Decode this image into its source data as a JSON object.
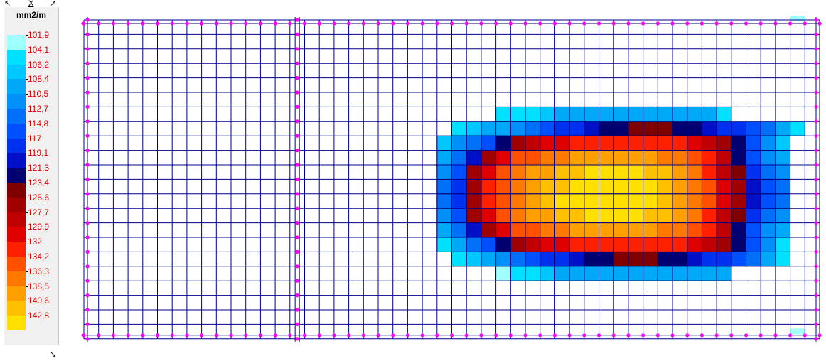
{
  "legend": {
    "unit": "mm2/m",
    "close_label": "X",
    "corner_glyphs": {
      "top_left": "↖",
      "top_right": "↗",
      "bottom_right": "↘"
    },
    "entries": [
      {
        "label": "101,9",
        "color": "#a0ffff"
      },
      {
        "label": "104,1",
        "color": "#00e0ff"
      },
      {
        "label": "106,2",
        "color": "#00c8ff"
      },
      {
        "label": "108,4",
        "color": "#00a8f8"
      },
      {
        "label": "110,5",
        "color": "#0090f8"
      },
      {
        "label": "112,7",
        "color": "#0070f8"
      },
      {
        "label": "114,8",
        "color": "#0050ff"
      },
      {
        "label": "117",
        "color": "#0030f0"
      },
      {
        "label": "119,1",
        "color": "#0010c8"
      },
      {
        "label": "121,3",
        "color": "#000070"
      },
      {
        "label": "123,4",
        "color": "#800000"
      },
      {
        "label": "125,6",
        "color": "#a00000"
      },
      {
        "label": "127,7",
        "color": "#c00000"
      },
      {
        "label": "129,9",
        "color": "#e00000"
      },
      {
        "label": "132",
        "color": "#ff2000"
      },
      {
        "label": "134,2",
        "color": "#ff5000"
      },
      {
        "label": "136,3",
        "color": "#ff7800"
      },
      {
        "label": "138,5",
        "color": "#ffa000"
      },
      {
        "label": "140,6",
        "color": "#ffc000"
      },
      {
        "label": "142,8",
        "color": "#ffe000"
      }
    ]
  },
  "mesh": {
    "cols": 50,
    "rows": 22,
    "support_lines_at_cols": [
      14.5
    ],
    "line_color": "#00008c",
    "node_color": "#ff00ff",
    "contour_rows": [
      {
        "row": 6,
        "start": 28,
        "cells": [
          1,
          1,
          1,
          2,
          3,
          3,
          3,
          3,
          3,
          3,
          3,
          3,
          3,
          3,
          3,
          1
        ]
      },
      {
        "row": 7,
        "start": 25,
        "cells": [
          1,
          2,
          3,
          3,
          4,
          5,
          6,
          7,
          7,
          8,
          9,
          9,
          10,
          10,
          10,
          9,
          9,
          8,
          7,
          7,
          6,
          5,
          3,
          1
        ]
      },
      {
        "row": 8,
        "start": 24,
        "cells": [
          2,
          4,
          5,
          6,
          9,
          11,
          12,
          13,
          13,
          14,
          14,
          14,
          14,
          14,
          14,
          14,
          14,
          13,
          12,
          11,
          9,
          6,
          4,
          2
        ]
      },
      {
        "row": 9,
        "start": 24,
        "cells": [
          3,
          5,
          8,
          11,
          13,
          15,
          15,
          16,
          16,
          17,
          17,
          17,
          17,
          17,
          17,
          16,
          16,
          15,
          14,
          12,
          9,
          6,
          4,
          3
        ]
      },
      {
        "row": 10,
        "start": 24,
        "cells": [
          4,
          6,
          11,
          13,
          15,
          16,
          17,
          17,
          18,
          18,
          19,
          19,
          19,
          19,
          18,
          18,
          17,
          16,
          14,
          12,
          10,
          7,
          5,
          4
        ]
      },
      {
        "row": 11,
        "start": 24,
        "cells": [
          5,
          7,
          11,
          14,
          15,
          16,
          17,
          18,
          18,
          19,
          19,
          19,
          19,
          19,
          19,
          18,
          17,
          16,
          15,
          13,
          11,
          8,
          6,
          5
        ]
      },
      {
        "row": 12,
        "start": 24,
        "cells": [
          5,
          7,
          11,
          14,
          15,
          16,
          17,
          18,
          19,
          19,
          19,
          19,
          19,
          19,
          19,
          18,
          17,
          16,
          15,
          13,
          11,
          8,
          6,
          5
        ]
      },
      {
        "row": 13,
        "start": 24,
        "cells": [
          4,
          6,
          11,
          13,
          15,
          16,
          17,
          17,
          18,
          18,
          19,
          19,
          19,
          19,
          18,
          18,
          17,
          16,
          14,
          12,
          10,
          7,
          5,
          4
        ]
      },
      {
        "row": 14,
        "start": 24,
        "cells": [
          3,
          5,
          8,
          11,
          13,
          15,
          15,
          16,
          16,
          17,
          17,
          17,
          17,
          17,
          17,
          16,
          16,
          15,
          14,
          12,
          9,
          6,
          4,
          3
        ]
      },
      {
        "row": 15,
        "start": 24,
        "cells": [
          1,
          3,
          5,
          6,
          9,
          11,
          12,
          13,
          13,
          14,
          14,
          14,
          14,
          14,
          14,
          14,
          14,
          13,
          12,
          11,
          9,
          6,
          4,
          1
        ]
      },
      {
        "row": 16,
        "start": 25,
        "cells": [
          1,
          2,
          3,
          4,
          5,
          6,
          7,
          7,
          8,
          9,
          9,
          10,
          10,
          10,
          9,
          9,
          8,
          7,
          7,
          6,
          5,
          3,
          1
        ]
      },
      {
        "row": 17,
        "start": 28,
        "cells": [
          0,
          1,
          1,
          2,
          3,
          3,
          3,
          3,
          3,
          3,
          3,
          3,
          3,
          3,
          3,
          3
        ]
      }
    ],
    "corner_cells": [
      {
        "row": 0,
        "col": 48,
        "level": 0
      },
      {
        "row": 21,
        "col": 48,
        "level": 0
      }
    ]
  }
}
